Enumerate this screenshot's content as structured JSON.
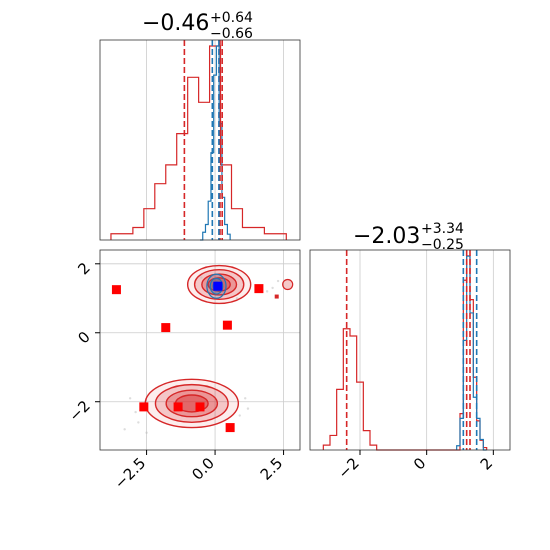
{
  "chart_data": {
    "type": "corner",
    "titles": [
      {
        "main": "−0.46",
        "sup": "+0.64",
        "sub": "−0.66"
      },
      {
        "main": "−2.03",
        "sup": "+3.34",
        "sub": "−0.25"
      }
    ],
    "panels": {
      "hist_x": {
        "xlim": [
          -4.2,
          3.1
        ],
        "vlines_red": [
          -1.12,
          0.18,
          0.26
        ],
        "vlines_blue": [
          -0.1,
          0.14
        ],
        "hist_blue": {
          "bins": [
            -0.55,
            -0.45,
            -0.35,
            -0.25,
            -0.15,
            -0.05,
            0.05,
            0.15,
            0.25,
            0.35,
            0.45,
            0.55
          ],
          "counts": [
            0.0,
            0.04,
            0.08,
            0.2,
            0.45,
            0.85,
            1.0,
            0.6,
            0.22,
            0.08,
            0.03,
            0.0
          ]
        },
        "hist_red": {
          "bins": [
            -3.8,
            -3.4,
            -3.0,
            -2.6,
            -2.2,
            -1.8,
            -1.4,
            -1.0,
            -0.6,
            -0.2,
            0.2,
            0.6,
            1.0,
            1.4,
            1.8,
            2.2,
            2.6
          ],
          "counts": [
            0.01,
            0.01,
            0.02,
            0.05,
            0.09,
            0.12,
            0.17,
            0.26,
            0.22,
            0.31,
            0.12,
            0.05,
            0.02,
            0.02,
            0.01,
            0.01,
            0.0
          ]
        }
      },
      "scatter_2d": {
        "xlim": [
          -4.2,
          3.1
        ],
        "ylim": [
          -3.4,
          2.4
        ],
        "xticks": [
          -2.5,
          0.0,
          2.5
        ],
        "xtick_labels": [
          "−2.5",
          "0.0",
          "2.5"
        ],
        "yticks": [
          -2,
          0,
          2
        ],
        "ytick_labels": [
          "−2",
          "0",
          "2"
        ],
        "red_squares": [
          [
            -3.6,
            1.25
          ],
          [
            -1.8,
            0.15
          ],
          [
            0.45,
            0.22
          ],
          [
            1.6,
            1.28
          ],
          [
            -2.6,
            -2.15
          ],
          [
            -1.35,
            -2.15
          ],
          [
            -0.55,
            -2.15
          ],
          [
            0.55,
            -2.75
          ]
        ],
        "blue_square": [
          0.1,
          1.35
        ],
        "red_contours": [
          {
            "cx": 0.15,
            "cy": 1.4,
            "rx": 1.15,
            "ry": 0.55
          },
          {
            "cx": -0.85,
            "cy": -2.05,
            "rx": 1.7,
            "ry": 0.7
          }
        ],
        "blue_contour": {
          "cx": 0.05,
          "cy": 1.35,
          "rx": 0.35,
          "ry": 0.35
        }
      },
      "hist_y": {
        "xlim": [
          -3.5,
          2.5
        ],
        "xticks": [
          -2,
          0,
          2
        ],
        "xtick_labels": [
          "−2",
          "0",
          "2"
        ],
        "vlines_red": [
          -2.4,
          1.2,
          1.3
        ],
        "vlines_blue": [
          1.1,
          1.5
        ],
        "hist_red": {
          "bins": [
            -3.1,
            -2.9,
            -2.7,
            -2.5,
            -2.3,
            -2.1,
            -1.9,
            -1.7,
            -1.5,
            1.0,
            1.1,
            1.2,
            1.3,
            1.4,
            1.5,
            1.6,
            1.7,
            1.8
          ],
          "counts": [
            0.02,
            0.06,
            0.25,
            0.5,
            0.47,
            0.28,
            0.08,
            0.02,
            0.0,
            0.15,
            0.7,
            0.8,
            0.62,
            0.3,
            0.12,
            0.04,
            0.01,
            0.0
          ]
        },
        "hist_blue": {
          "bins": [
            0.9,
            1.0,
            1.1,
            1.2,
            1.3,
            1.4,
            1.5,
            1.6,
            1.7,
            1.8
          ],
          "counts": [
            0.02,
            0.15,
            0.52,
            0.92,
            0.65,
            0.25,
            0.15,
            0.05,
            0.0,
            0.0
          ]
        }
      }
    }
  },
  "colors": {
    "red": "#d62728",
    "blue": "#1f77b4",
    "grid": "#cccccc",
    "square_red": "#ff0000",
    "square_blue": "#0000ff"
  }
}
